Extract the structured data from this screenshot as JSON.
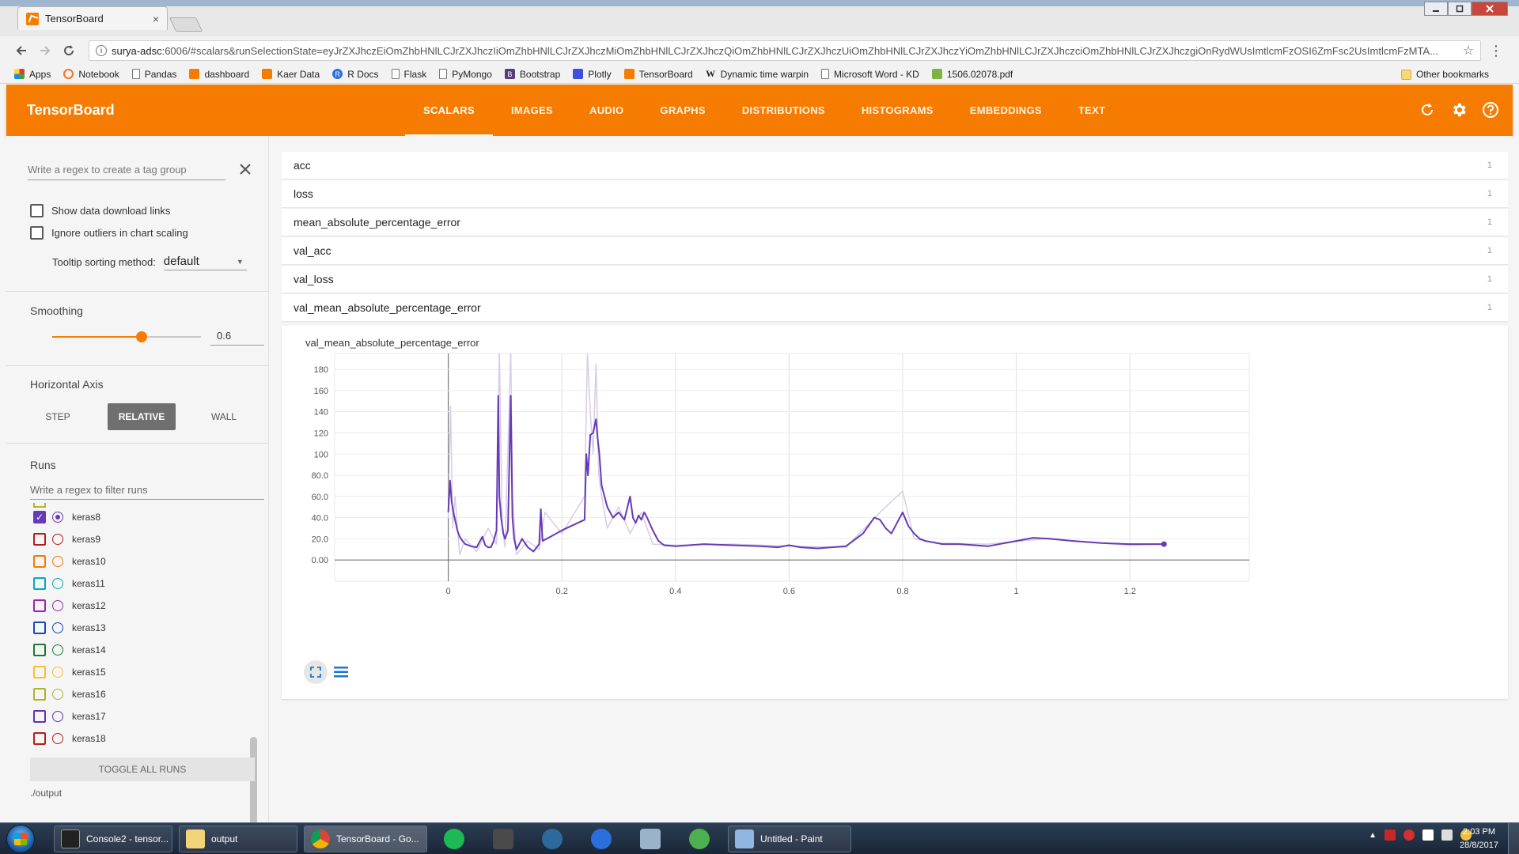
{
  "browser": {
    "tab_title": "TensorBoard",
    "tab_close": "×",
    "url_host": "surya-adsc",
    "url_rest": ":6006/#scalars&runSelectionState=eyJrZXJhczEiOmZhbHNlLCJrZXJhczIiOmZhbHNlLCJrZXJhczMiOmZhbHNlLCJrZXJhczQiOmZhbHNlLCJrZXJhczUiOmZhbHNlLCJrZXJhczYiOmZhbHNlLCJrZXJhczciOmZhbHNlLCJrZXJhczgiOnRydWUsImtlcmFzOSI6ZmFsc2UsImtlcmFzMTA...",
    "bookmarks": [
      "Apps",
      "Notebook",
      "Pandas",
      "dashboard",
      "Kaer Data",
      "R Docs",
      "Flask",
      "PyMongo",
      "Bootstrap",
      "Plotly",
      "TensorBoard",
      "Dynamic time warpin",
      "Microsoft Word - KD",
      "1506.02078.pdf"
    ],
    "other_bookmarks": "Other bookmarks"
  },
  "header": {
    "title": "TensorBoard",
    "tabs": [
      "SCALARS",
      "IMAGES",
      "AUDIO",
      "GRAPHS",
      "DISTRIBUTIONS",
      "HISTOGRAMS",
      "EMBEDDINGS",
      "TEXT"
    ],
    "active_tab": "SCALARS"
  },
  "sidebar": {
    "tag_group_placeholder": "Write a regex to create a tag group",
    "show_download_links": "Show data download links",
    "ignore_outliers": "Ignore outliers in chart scaling",
    "tooltip_sorting_label": "Tooltip sorting method:",
    "tooltip_sorting_value": "default",
    "smoothing_label": "Smoothing",
    "smoothing_value": "0.6",
    "horizontal_axis_label": "Horizontal Axis",
    "axis_options": [
      "STEP",
      "RELATIVE",
      "WALL"
    ],
    "axis_selected": "RELATIVE",
    "runs_label": "Runs",
    "runs_filter_placeholder": "Write a regex to filter runs",
    "runs": [
      {
        "name": "keras8",
        "color": "#673ab7",
        "checked": true
      },
      {
        "name": "keras9",
        "color": "#b71c1c",
        "checked": false
      },
      {
        "name": "keras10",
        "color": "#f57c00",
        "checked": false
      },
      {
        "name": "keras11",
        "color": "#00acc1",
        "checked": false
      },
      {
        "name": "keras12",
        "color": "#9c27b0",
        "checked": false
      },
      {
        "name": "keras13",
        "color": "#1a47b8",
        "checked": false
      },
      {
        "name": "keras14",
        "color": "#1b7a3a",
        "checked": false
      },
      {
        "name": "keras15",
        "color": "#fbc02d",
        "checked": false
      },
      {
        "name": "keras16",
        "color": "#afb42b",
        "checked": false
      },
      {
        "name": "keras17",
        "color": "#5e35b1",
        "checked": false
      },
      {
        "name": "keras18",
        "color": "#b71c1c",
        "checked": false
      }
    ],
    "toggle_all": "TOGGLE ALL RUNS",
    "output_dir": "./output"
  },
  "main": {
    "tags": [
      {
        "name": "acc",
        "count": "1"
      },
      {
        "name": "loss",
        "count": "1"
      },
      {
        "name": "mean_absolute_percentage_error",
        "count": "1"
      },
      {
        "name": "val_acc",
        "count": "1"
      },
      {
        "name": "val_loss",
        "count": "1"
      },
      {
        "name": "val_mean_absolute_percentage_error",
        "count": "1"
      }
    ]
  },
  "chart_data": {
    "type": "line",
    "title": "val_mean_absolute_percentage_error",
    "xlabel": "",
    "ylabel": "",
    "xlim": [
      -0.2,
      1.41
    ],
    "ylim": [
      -20,
      195
    ],
    "x_ticks": [
      "0",
      "0.2",
      "0.4",
      "0.6",
      "0.8",
      "1",
      "1.2"
    ],
    "x_tick_values": [
      0,
      0.2,
      0.4,
      0.6,
      0.8,
      1,
      1.2
    ],
    "y_ticks": [
      "0.00",
      "20.0",
      "40.0",
      "60.0",
      "80.0",
      "100",
      "120",
      "140",
      "160",
      "180"
    ],
    "y_tick_values": [
      0,
      20,
      40,
      60,
      80,
      100,
      120,
      140,
      160,
      180
    ],
    "series": [
      {
        "name": "keras8 (smoothed)",
        "color": "#673ab7",
        "x": [
          0,
          0.003,
          0.006,
          0.009,
          0.012,
          0.016,
          0.02,
          0.025,
          0.03,
          0.04,
          0.05,
          0.06,
          0.065,
          0.07,
          0.075,
          0.08,
          0.085,
          0.088,
          0.09,
          0.093,
          0.097,
          0.1,
          0.105,
          0.11,
          0.113,
          0.116,
          0.12,
          0.13,
          0.14,
          0.15,
          0.16,
          0.163,
          0.166,
          0.18,
          0.2,
          0.24,
          0.243,
          0.246,
          0.25,
          0.255,
          0.26,
          0.263,
          0.266,
          0.27,
          0.275,
          0.28,
          0.29,
          0.3,
          0.31,
          0.32,
          0.325,
          0.33,
          0.335,
          0.34,
          0.345,
          0.35,
          0.36,
          0.37,
          0.38,
          0.4,
          0.45,
          0.5,
          0.55,
          0.58,
          0.6,
          0.62,
          0.65,
          0.7,
          0.73,
          0.75,
          0.76,
          0.77,
          0.78,
          0.79,
          0.8,
          0.81,
          0.82,
          0.83,
          0.84,
          0.85,
          0.87,
          0.9,
          0.95,
          1.0,
          1.03,
          1.06,
          1.1,
          1.15,
          1.2,
          1.25,
          1.26
        ],
        "y": [
          45,
          75,
          55,
          45,
          38,
          28,
          22,
          18,
          15,
          13,
          12,
          22,
          14,
          12,
          12,
          18,
          28,
          155,
          60,
          40,
          25,
          20,
          28,
          155,
          40,
          20,
          10,
          20,
          12,
          8,
          15,
          48,
          18,
          22,
          28,
          38,
          100,
          80,
          118,
          120,
          133,
          115,
          100,
          70,
          60,
          50,
          40,
          45,
          38,
          60,
          40,
          35,
          42,
          38,
          45,
          40,
          28,
          18,
          14,
          13,
          15,
          14,
          13,
          12,
          14,
          12,
          11,
          13,
          25,
          40,
          38,
          30,
          25,
          35,
          45,
          32,
          25,
          20,
          18,
          17,
          15,
          15,
          13,
          18,
          21,
          20,
          18,
          16,
          15,
          15,
          15
        ]
      },
      {
        "name": "keras8 (raw)",
        "color": "#d6cce8",
        "x": [
          0,
          0.004,
          0.008,
          0.012,
          0.02,
          0.03,
          0.05,
          0.07,
          0.085,
          0.09,
          0.095,
          0.1,
          0.11,
          0.113,
          0.12,
          0.14,
          0.16,
          0.17,
          0.2,
          0.24,
          0.245,
          0.25,
          0.255,
          0.26,
          0.265,
          0.27,
          0.28,
          0.3,
          0.32,
          0.34,
          0.36,
          0.4,
          0.5,
          0.6,
          0.7,
          0.76,
          0.8,
          0.82,
          0.86,
          0.95,
          1.05,
          1.2,
          1.26
        ],
        "y": [
          40,
          145,
          30,
          60,
          5,
          20,
          8,
          30,
          15,
          198,
          30,
          12,
          198,
          60,
          5,
          18,
          10,
          45,
          25,
          60,
          195,
          140,
          100,
          185,
          80,
          60,
          30,
          50,
          25,
          45,
          15,
          14,
          15,
          13,
          12,
          45,
          65,
          20,
          16,
          15,
          20,
          14,
          15
        ]
      }
    ]
  }
}
